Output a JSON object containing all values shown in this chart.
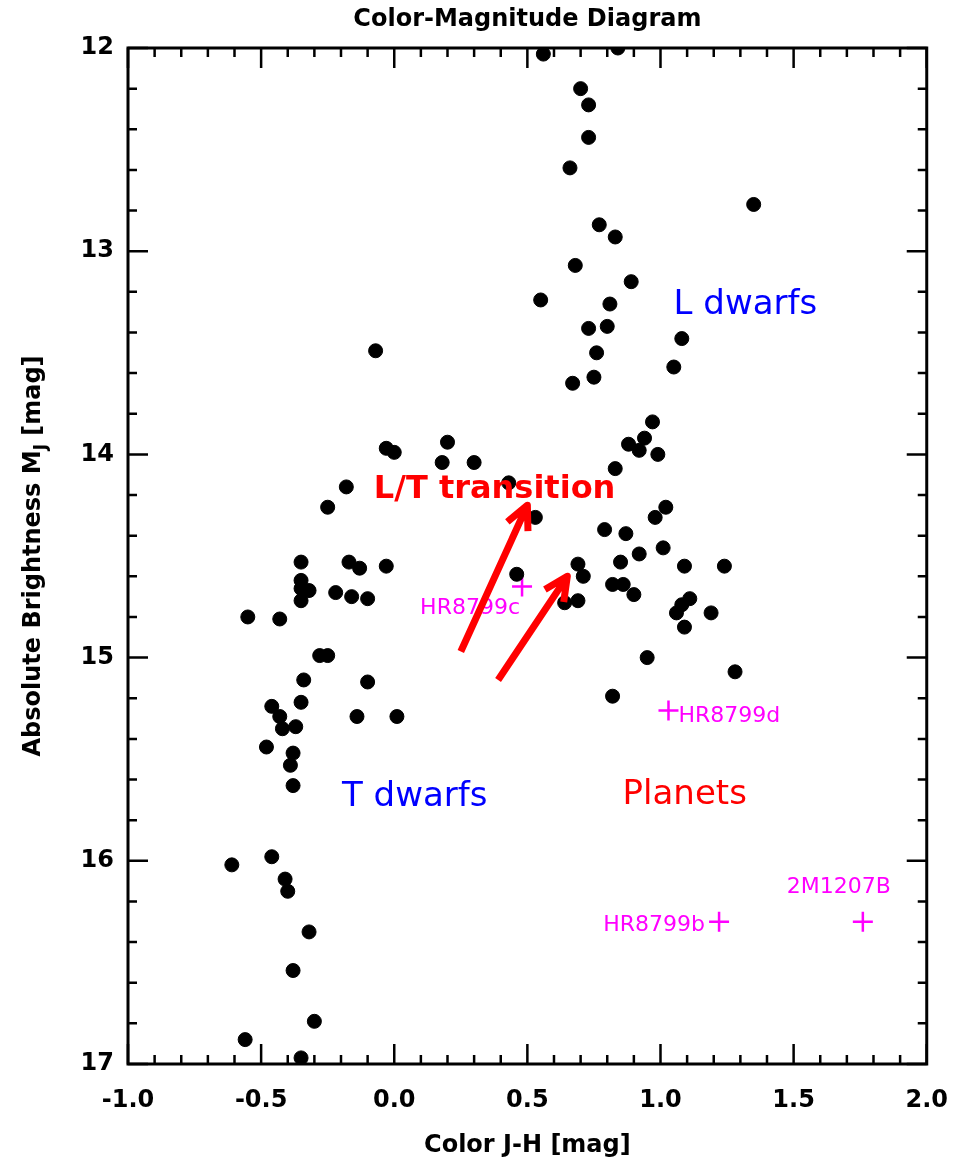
{
  "chart_data": {
    "type": "scatter",
    "title": "Color-Magnitude Diagram",
    "xlabel": "Color J-H [mag]",
    "ylabel": "Absolute Brightness M$_{J}$ [mag]",
    "xlim": [
      -1.0,
      2.0
    ],
    "ylim": [
      17,
      12
    ],
    "xticks": [
      {
        "value": -1.0,
        "label": "-1.0"
      },
      {
        "value": -0.5,
        "label": "-0.5"
      },
      {
        "value": 0,
        "label": "0.0"
      },
      {
        "value": 0.5,
        "label": "0.5"
      },
      {
        "value": 1.0,
        "label": "1.0"
      },
      {
        "value": 1.5,
        "label": "1.5"
      },
      {
        "value": 2.0,
        "label": "2.0"
      }
    ],
    "yticks": [
      12,
      13,
      14,
      15,
      16,
      17
    ],
    "legend": false,
    "series": [
      {
        "type": "scatter",
        "color": "#000000",
        "marker": "circle",
        "x": [
          0.56,
          0.84,
          0.7,
          0.73,
          0.73,
          0.66,
          1.35,
          0.77,
          0.83,
          0.68,
          0.89,
          0.55,
          0.81,
          0.73,
          0.8,
          1.08,
          0.76,
          1.05,
          0.75,
          0.67,
          0.97,
          -0.07,
          -0.03,
          0.0,
          0.2,
          0.18,
          0.3,
          0.43,
          -0.18,
          -0.25,
          0.53,
          0.94,
          0.88,
          0.92,
          0.99,
          0.83,
          1.02,
          0.98,
          0.79,
          0.87,
          1.01,
          0.92,
          0.85,
          1.09,
          1.24,
          0.69,
          0.71,
          0.69,
          0.64,
          0.82,
          0.86,
          0.9,
          1.11,
          1.08,
          1.06,
          1.19,
          1.09,
          0.95,
          1.28,
          0.82,
          0.46,
          -0.35,
          -0.35,
          -0.35,
          -0.32,
          -0.35,
          -0.17,
          -0.13,
          -0.03,
          -0.22,
          -0.16,
          -0.1,
          -0.55,
          -0.43,
          -0.28,
          -0.25,
          -0.34,
          -0.1,
          -0.14,
          0.01,
          -0.46,
          -0.35,
          -0.43,
          -0.42,
          -0.37,
          -0.48,
          -0.38,
          -0.39,
          -0.38,
          -0.61,
          -0.46,
          -0.41,
          -0.4,
          -0.32,
          -0.38,
          -0.3,
          -0.56,
          -0.35
        ],
        "values": [
          12.03,
          12.0,
          12.2,
          12.28,
          12.44,
          12.59,
          12.77,
          12.87,
          12.93,
          13.07,
          13.15,
          13.24,
          13.26,
          13.38,
          13.37,
          13.43,
          13.5,
          13.57,
          13.62,
          13.65,
          13.84,
          13.49,
          13.97,
          13.99,
          13.94,
          14.04,
          14.04,
          14.14,
          14.16,
          14.26,
          14.31,
          13.92,
          13.95,
          13.98,
          14.0,
          14.07,
          14.26,
          14.31,
          14.37,
          14.39,
          14.46,
          14.49,
          14.53,
          14.55,
          14.55,
          14.54,
          14.6,
          14.72,
          14.73,
          14.64,
          14.64,
          14.69,
          14.71,
          14.74,
          14.78,
          14.78,
          14.85,
          15.0,
          15.07,
          15.19,
          14.59,
          14.53,
          14.62,
          14.66,
          14.67,
          14.72,
          14.53,
          14.56,
          14.55,
          14.68,
          14.7,
          14.71,
          14.8,
          14.81,
          14.99,
          14.99,
          15.11,
          15.12,
          15.29,
          15.29,
          15.24,
          15.22,
          15.29,
          15.35,
          15.34,
          15.44,
          15.47,
          15.53,
          15.63,
          16.02,
          15.98,
          16.09,
          16.15,
          16.35,
          16.54,
          16.79,
          16.88,
          16.97
        ]
      },
      {
        "type": "scatter",
        "color": "#ff00ff",
        "marker": "cross",
        "x": [
          0.48,
          1.03,
          1.22,
          1.76
        ],
        "values": [
          14.65,
          15.26,
          16.3,
          16.3
        ],
        "value_labels": [
          "HR8799c",
          "HR8799d",
          "HR8799b",
          "2M1207B"
        ]
      }
    ],
    "annotations": [
      "L/T transition",
      "L dwarfs",
      "T dwarfs",
      "Planets"
    ]
  }
}
